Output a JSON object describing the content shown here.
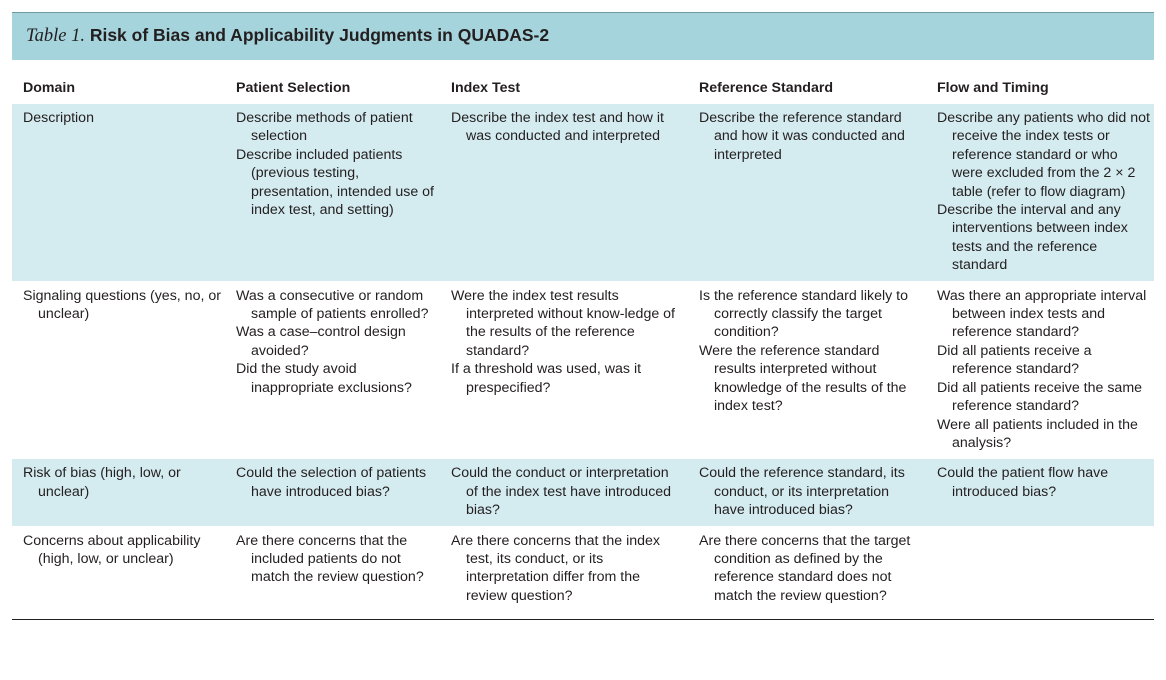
{
  "table": {
    "label": "Table 1.",
    "title": "Risk of Bias and Applicability Judgments in QUADAS-2",
    "headers": [
      "Domain",
      "Patient Selection",
      "Index Test",
      "Reference Standard",
      "Flow and Timing"
    ],
    "rows": [
      {
        "domain": "Description",
        "patient_selection": [
          "Describe methods of patient selection",
          "Describe included patients (previous testing, presentation, intended use of index test, and setting)"
        ],
        "index_test": [
          "Describe the index test and how it was conducted and interpreted"
        ],
        "reference_standard": [
          "Describe the reference standard and how it was conducted and interpreted"
        ],
        "flow_timing": [
          "Describe any patients who did not receive the index tests or reference standard or who were excluded from the 2 × 2 table (refer to flow diagram)",
          "Describe the interval and any interventions between index tests and the reference standard"
        ]
      },
      {
        "domain": "Signaling questions (yes, no, or unclear)",
        "patient_selection": [
          "Was a consecutive or random sample of patients enrolled?",
          "Was a case–control design avoided?",
          "Did the study avoid inappropriate exclusions?"
        ],
        "index_test": [
          "Were the index test results interpreted without know-ledge of the results of the reference standard?",
          "If a threshold was used, was it prespecified?"
        ],
        "reference_standard": [
          "Is the reference standard likely to correctly classify the target condition?",
          "Were the reference standard results interpreted without knowledge of the results of the index test?"
        ],
        "flow_timing": [
          "Was there an appropriate interval between index tests and reference standard?",
          "Did all patients receive a reference standard?",
          "Did all patients receive the same reference standard?",
          "Were all patients included in the analysis?"
        ]
      },
      {
        "domain": "Risk of bias (high, low, or unclear)",
        "patient_selection": [
          "Could the selection of patients have introduced bias?"
        ],
        "index_test": [
          "Could the conduct or interpretation of the index test have introduced bias?"
        ],
        "reference_standard": [
          "Could the reference standard, its conduct, or its interpretation have introduced bias?"
        ],
        "flow_timing": [
          "Could the patient flow have introduced bias?"
        ]
      },
      {
        "domain": "Concerns about applicability (high, low, or unclear)",
        "patient_selection": [
          "Are there concerns that the included patients do not match the review question?"
        ],
        "index_test": [
          "Are there concerns that the index test, its conduct, or its interpretation differ from the review question?"
        ],
        "reference_standard": [
          "Are there concerns that the target condition as defined by the reference standard does not match the review question?"
        ],
        "flow_timing": []
      }
    ]
  },
  "colors": {
    "title_band": "#a6d4dc",
    "row_shade": "#d4ebf0",
    "text": "#231f20"
  }
}
